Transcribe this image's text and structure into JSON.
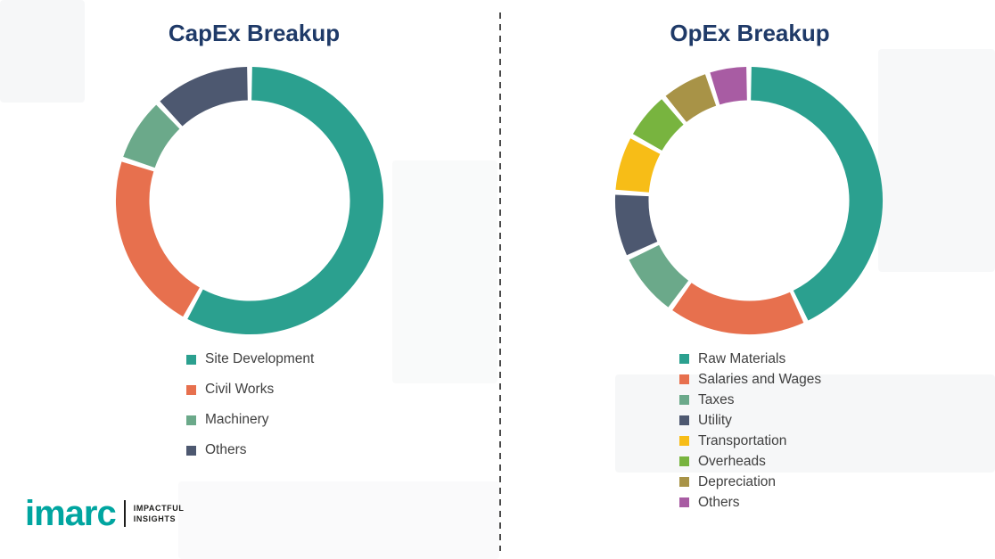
{
  "page": {
    "background": "#ffffff"
  },
  "divider": {
    "style": "dashed-vertical",
    "color": "#4a4a4a"
  },
  "logo": {
    "wordmark": "imarc",
    "wordmark_color": "#00A5A0",
    "tagline_line1": "IMPACTFUL",
    "tagline_line2": "INSIGHTS",
    "tagline_color": "#1d1d1b"
  },
  "chart_data": [
    {
      "type": "pie",
      "subtype": "donut",
      "title": "CapEx Breakup",
      "title_color": "#1F3A68",
      "labels": [
        "Site Development",
        "Civil Works",
        "Machinery",
        "Others"
      ],
      "values": [
        58,
        22,
        8,
        12
      ],
      "colors": [
        "#2BA08F",
        "#E7704E",
        "#6BA98A",
        "#4D5870"
      ],
      "legend_position": "below-chart-left",
      "data_labels": "none"
    },
    {
      "type": "pie",
      "subtype": "donut",
      "title": "OpEx Breakup",
      "title_color": "#1F3A68",
      "labels": [
        "Raw Materials",
        "Salaries and Wages",
        "Taxes",
        "Utility",
        "Transportation",
        "Overheads",
        "Depreciation",
        "Others"
      ],
      "values": [
        43,
        17,
        8,
        8,
        7,
        6,
        6,
        5
      ],
      "colors": [
        "#2BA08F",
        "#E7704E",
        "#6BA98A",
        "#4D5870",
        "#F7BD17",
        "#78B43F",
        "#A89347",
        "#A85CA3"
      ],
      "legend_position": "below-chart-left",
      "data_labels": "none"
    }
  ]
}
